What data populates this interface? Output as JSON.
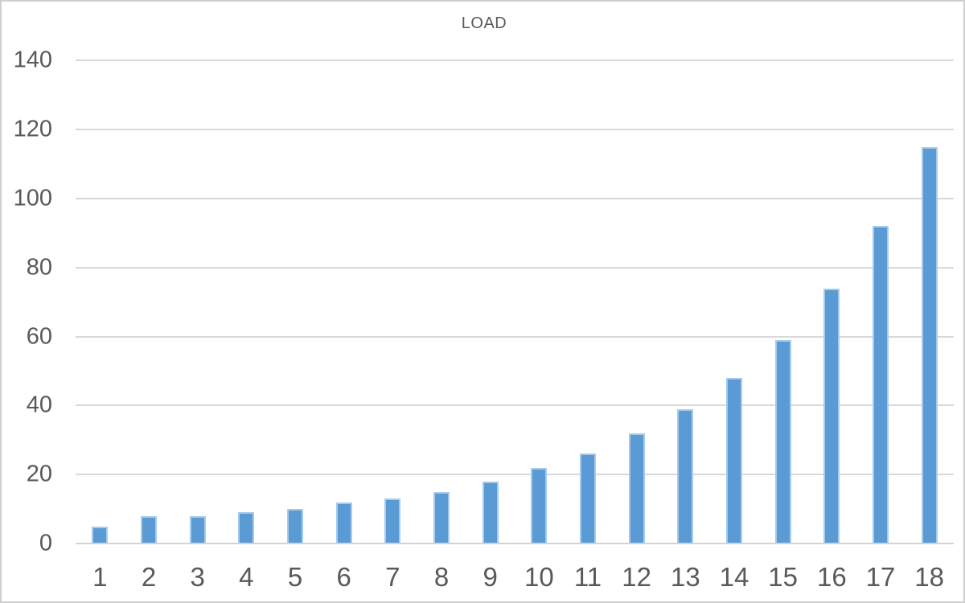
{
  "window": {
    "background_color": "#ffffff",
    "border_color": "#cfcfcf"
  },
  "chart_data": {
    "type": "bar",
    "title": "LOAD",
    "categories": [
      "1",
      "2",
      "3",
      "4",
      "5",
      "6",
      "7",
      "8",
      "9",
      "10",
      "11",
      "12",
      "13",
      "14",
      "15",
      "16",
      "17",
      "18"
    ],
    "values": [
      5,
      8,
      8,
      9,
      10,
      12,
      13,
      15,
      18,
      22,
      26,
      32,
      39,
      48,
      59,
      74,
      92,
      115
    ],
    "xlabel": "",
    "ylabel": "",
    "ylim": [
      0,
      140
    ],
    "yticks": [
      0,
      20,
      40,
      60,
      80,
      100,
      120,
      140
    ],
    "grid": "horizontal",
    "legend": "none",
    "colors": {
      "bar_fill": "#5b9bd5",
      "bar_edge": "#a6cbec",
      "gridline": "#d9d9d9",
      "axis_line": "#d3d3d3",
      "tick_text": "#595959",
      "title_text": "#595959"
    }
  }
}
